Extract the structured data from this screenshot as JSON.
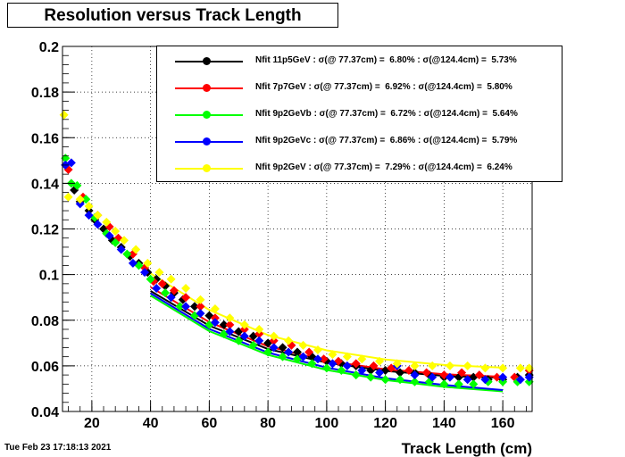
{
  "title": "Resolution versus Track Length",
  "timestamp": "Tue Feb 23 17:18:13 2021",
  "chart_data": {
    "type": "scatter",
    "title": "Resolution versus Track Length",
    "xlabel": "Track Length (cm)",
    "ylabel": "",
    "xlim": [
      10,
      170
    ],
    "ylim": [
      0.04,
      0.2
    ],
    "xticks": [
      20,
      40,
      60,
      80,
      100,
      120,
      140,
      160
    ],
    "yticks": [
      0.04,
      0.06,
      0.08,
      0.1,
      0.12,
      0.14,
      0.16,
      0.18,
      0.2
    ],
    "xtick_labels": [
      "20",
      "40",
      "60",
      "80",
      "100",
      "120",
      "140",
      "160"
    ],
    "ytick_labels": [
      "0.04",
      "0.06",
      "0.08",
      "0.1",
      "0.12",
      "0.14",
      "0.16",
      "0.18",
      "0.2"
    ],
    "grid": true,
    "legend_position": "top-right",
    "series": [
      {
        "name": "Nfit 11p5GeV",
        "legend_label": "Nfit 11p5GeV : σ(@ 77.37cm) =  6.80% : σ(@124.4cm) =  5.73%",
        "color": "#000000",
        "points": [
          [
            11,
            0.148
          ],
          [
            14,
            0.137
          ],
          [
            16,
            0.132
          ],
          [
            19,
            0.128
          ],
          [
            21,
            0.124
          ],
          [
            24,
            0.12
          ],
          [
            27,
            0.115
          ],
          [
            30,
            0.112
          ],
          [
            33,
            0.108
          ],
          [
            36,
            0.105
          ],
          [
            39,
            0.101
          ],
          [
            42,
            0.098
          ],
          [
            45,
            0.095
          ],
          [
            48,
            0.092
          ],
          [
            51,
            0.089
          ],
          [
            55,
            0.086
          ],
          [
            60,
            0.082
          ],
          [
            65,
            0.078
          ],
          [
            70,
            0.075
          ],
          [
            75,
            0.073
          ],
          [
            80,
            0.07
          ],
          [
            85,
            0.068
          ],
          [
            90,
            0.066
          ],
          [
            95,
            0.064
          ],
          [
            100,
            0.062
          ],
          [
            105,
            0.061
          ],
          [
            110,
            0.06
          ],
          [
            115,
            0.058
          ],
          [
            120,
            0.058
          ],
          [
            125,
            0.057
          ],
          [
            130,
            0.057
          ],
          [
            135,
            0.056
          ],
          [
            140,
            0.055
          ],
          [
            145,
            0.055
          ],
          [
            150,
            0.055
          ],
          [
            155,
            0.054
          ],
          [
            160,
            0.054
          ],
          [
            165,
            0.055
          ],
          [
            169,
            0.056
          ]
        ],
        "fit": [
          [
            40,
            0.0928
          ],
          [
            60,
            0.0776
          ],
          [
            80,
            0.0674
          ],
          [
            100,
            0.0614
          ],
          [
            120,
            0.0578
          ],
          [
            140,
            0.0556
          ],
          [
            160,
            0.0548
          ]
        ]
      },
      {
        "name": "Nfit 7p7GeV",
        "legend_label": "Nfit 7p7GeV : σ(@ 77.37cm) =  6.92% : σ(@124.4cm) =  5.80%",
        "color": "#ff0000",
        "points": [
          [
            12,
            0.146
          ],
          [
            17,
            0.134
          ],
          [
            22,
            0.126
          ],
          [
            26,
            0.121
          ],
          [
            29,
            0.116
          ],
          [
            34,
            0.109
          ],
          [
            38,
            0.103
          ],
          [
            41,
            0.097
          ],
          [
            44,
            0.096
          ],
          [
            48,
            0.093
          ],
          [
            52,
            0.09
          ],
          [
            57,
            0.086
          ],
          [
            62,
            0.081
          ],
          [
            67,
            0.078
          ],
          [
            72,
            0.076
          ],
          [
            77,
            0.074
          ],
          [
            82,
            0.071
          ],
          [
            88,
            0.069
          ],
          [
            94,
            0.066
          ],
          [
            99,
            0.063
          ],
          [
            104,
            0.062
          ],
          [
            110,
            0.061
          ],
          [
            116,
            0.06
          ],
          [
            122,
            0.059
          ],
          [
            128,
            0.058
          ],
          [
            134,
            0.057
          ],
          [
            140,
            0.056
          ],
          [
            146,
            0.057
          ],
          [
            152,
            0.056
          ],
          [
            158,
            0.055
          ],
          [
            164,
            0.055
          ],
          [
            169,
            0.058
          ]
        ],
        "fit": [
          [
            40,
            0.0945
          ],
          [
            60,
            0.0792
          ],
          [
            80,
            0.0685
          ],
          [
            100,
            0.0622
          ],
          [
            120,
            0.0585
          ],
          [
            140,
            0.0563
          ],
          [
            160,
            0.0552
          ]
        ]
      },
      {
        "name": "Nfit 9p2GeVb",
        "legend_label": "Nfit 9p2GeVb : σ(@ 77.37cm) =  6.72% : σ(@124.4cm) =  5.64%",
        "color": "#00ff00",
        "points": [
          [
            11,
            0.151
          ],
          [
            13,
            0.14
          ],
          [
            15,
            0.139
          ],
          [
            18,
            0.133
          ],
          [
            21,
            0.125
          ],
          [
            25,
            0.118
          ],
          [
            28,
            0.114
          ],
          [
            32,
            0.109
          ],
          [
            36,
            0.104
          ],
          [
            40,
            0.098
          ],
          [
            45,
            0.092
          ],
          [
            50,
            0.086
          ],
          [
            55,
            0.082
          ],
          [
            60,
            0.078
          ],
          [
            65,
            0.074
          ],
          [
            70,
            0.071
          ],
          [
            75,
            0.069
          ],
          [
            80,
            0.066
          ],
          [
            85,
            0.064
          ],
          [
            90,
            0.063
          ],
          [
            95,
            0.061
          ],
          [
            100,
            0.059
          ],
          [
            105,
            0.058
          ],
          [
            110,
            0.056
          ],
          [
            115,
            0.055
          ],
          [
            120,
            0.054
          ],
          [
            125,
            0.054
          ],
          [
            130,
            0.053
          ],
          [
            135,
            0.053
          ],
          [
            140,
            0.052
          ],
          [
            145,
            0.052
          ],
          [
            150,
            0.052
          ],
          [
            155,
            0.053
          ],
          [
            160,
            0.053
          ],
          [
            165,
            0.053
          ],
          [
            169,
            0.053
          ]
        ],
        "fit": [
          [
            40,
            0.0908
          ],
          [
            60,
            0.0752
          ],
          [
            80,
            0.0648
          ],
          [
            100,
            0.0582
          ],
          [
            120,
            0.0538
          ],
          [
            140,
            0.0508
          ],
          [
            160,
            0.0488
          ]
        ]
      },
      {
        "name": "Nfit 9p2GeVc",
        "legend_label": "Nfit 9p2GeVc : σ(@ 77.37cm) =  6.86% : σ(@124.4cm) =  5.79%",
        "color": "#0000ff",
        "points": [
          [
            11,
            0.148
          ],
          [
            13,
            0.149
          ],
          [
            16,
            0.131
          ],
          [
            19,
            0.126
          ],
          [
            22,
            0.122
          ],
          [
            26,
            0.117
          ],
          [
            30,
            0.111
          ],
          [
            34,
            0.105
          ],
          [
            38,
            0.101
          ],
          [
            42,
            0.094
          ],
          [
            47,
            0.09
          ],
          [
            52,
            0.086
          ],
          [
            57,
            0.083
          ],
          [
            62,
            0.079
          ],
          [
            67,
            0.075
          ],
          [
            72,
            0.073
          ],
          [
            77,
            0.071
          ],
          [
            82,
            0.068
          ],
          [
            87,
            0.066
          ],
          [
            92,
            0.064
          ],
          [
            97,
            0.063
          ],
          [
            102,
            0.061
          ],
          [
            107,
            0.06
          ],
          [
            112,
            0.058
          ],
          [
            118,
            0.057
          ],
          [
            124,
            0.06
          ],
          [
            130,
            0.056
          ],
          [
            136,
            0.055
          ],
          [
            142,
            0.055
          ],
          [
            148,
            0.054
          ],
          [
            154,
            0.054
          ],
          [
            160,
            0.055
          ],
          [
            166,
            0.054
          ],
          [
            169,
            0.055
          ]
        ],
        "fit": [
          [
            40,
            0.0918
          ],
          [
            60,
            0.0762
          ],
          [
            80,
            0.0658
          ],
          [
            100,
            0.0592
          ],
          [
            120,
            0.0546
          ],
          [
            140,
            0.0516
          ],
          [
            160,
            0.0494
          ]
        ]
      },
      {
        "name": "Nfit 9p2GeV",
        "legend_label": "Nfit 9p2GeV : σ(@ 77.37cm) =  7.29% : σ(@124.4cm) =  6.24%",
        "color": "#ffff00",
        "points": [
          [
            10.5,
            0.17
          ],
          [
            12,
            0.134
          ],
          [
            16,
            0.133
          ],
          [
            19,
            0.13
          ],
          [
            22,
            0.126
          ],
          [
            25,
            0.123
          ],
          [
            28,
            0.119
          ],
          [
            31,
            0.115
          ],
          [
            35,
            0.111
          ],
          [
            39,
            0.105
          ],
          [
            43,
            0.101
          ],
          [
            47,
            0.098
          ],
          [
            52,
            0.094
          ],
          [
            57,
            0.089
          ],
          [
            62,
            0.085
          ],
          [
            67,
            0.081
          ],
          [
            72,
            0.078
          ],
          [
            77,
            0.076
          ],
          [
            82,
            0.073
          ],
          [
            87,
            0.071
          ],
          [
            92,
            0.069
          ],
          [
            97,
            0.067
          ],
          [
            102,
            0.065
          ],
          [
            107,
            0.064
          ],
          [
            112,
            0.063
          ],
          [
            118,
            0.062
          ],
          [
            124,
            0.061
          ],
          [
            130,
            0.06
          ],
          [
            136,
            0.06
          ],
          [
            142,
            0.06
          ],
          [
            148,
            0.06
          ],
          [
            154,
            0.059
          ],
          [
            160,
            0.059
          ],
          [
            166,
            0.059
          ],
          [
            169,
            0.059
          ]
        ],
        "fit": [
          [
            40,
            0.1005
          ],
          [
            60,
            0.0845
          ],
          [
            80,
            0.0735
          ],
          [
            100,
            0.0668
          ],
          [
            120,
            0.0628
          ],
          [
            140,
            0.0604
          ],
          [
            160,
            0.0592
          ]
        ]
      }
    ]
  }
}
